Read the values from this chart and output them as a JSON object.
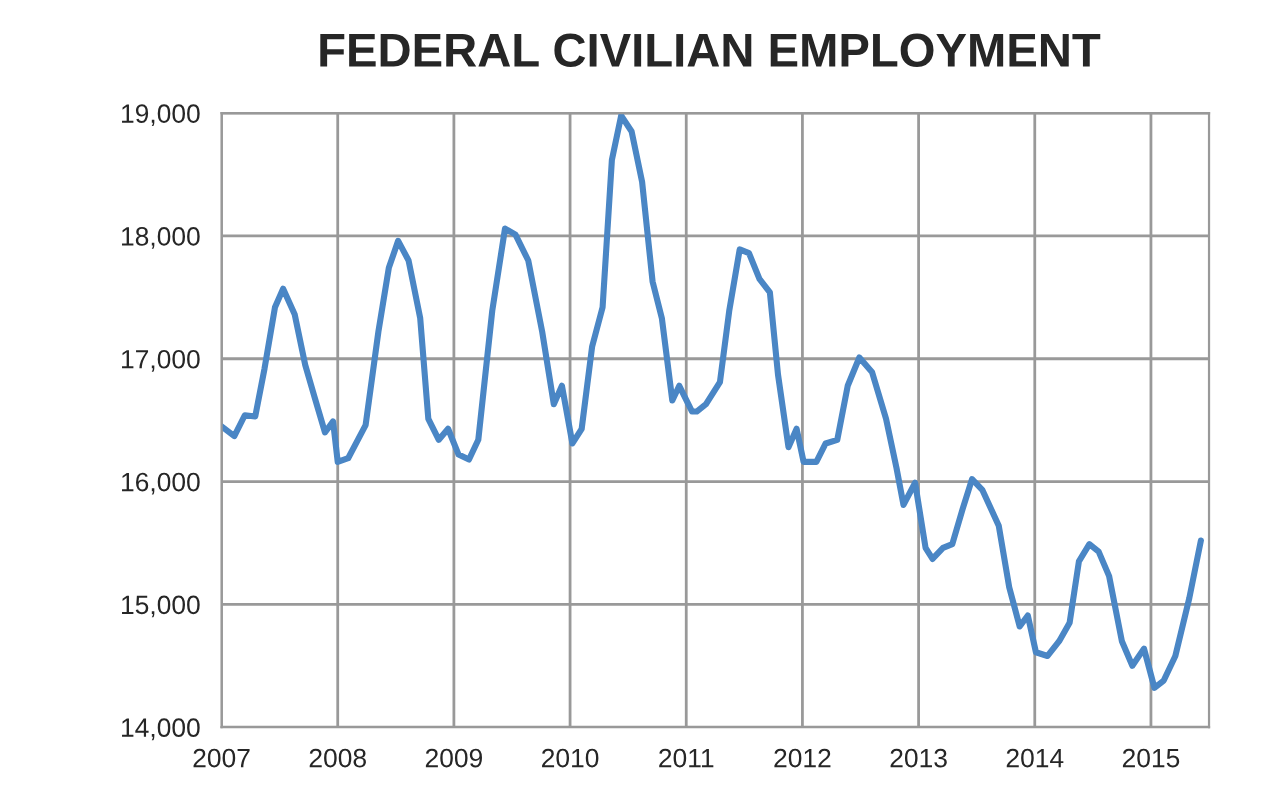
{
  "chart_data": {
    "type": "line",
    "title": "FEDERAL CIVILIAN EMPLOYMENT",
    "x": [
      2007.0,
      2007.11,
      2007.2,
      2007.29,
      2007.37,
      2007.46,
      2007.53,
      2007.63,
      2007.72,
      2007.8,
      2007.89,
      2007.96,
      2008.0,
      2008.09,
      2008.24,
      2008.35,
      2008.44,
      2008.52,
      2008.61,
      2008.71,
      2008.78,
      2008.87,
      2008.95,
      2009.04,
      2009.13,
      2009.21,
      2009.33,
      2009.44,
      2009.53,
      2009.64,
      2009.76,
      2009.86,
      2009.93,
      2010.02,
      2010.1,
      2010.19,
      2010.28,
      2010.36,
      2010.44,
      2010.53,
      2010.62,
      2010.71,
      2010.79,
      2010.88,
      2010.94,
      2011.05,
      2011.09,
      2011.17,
      2011.29,
      2011.37,
      2011.46,
      2011.54,
      2011.63,
      2011.72,
      2011.79,
      2011.88,
      2011.95,
      2012.01,
      2012.12,
      2012.2,
      2012.3,
      2012.39,
      2012.49,
      2012.6,
      2012.72,
      2012.81,
      2012.87,
      2012.97,
      2013.06,
      2013.12,
      2013.21,
      2013.29,
      2013.38,
      2013.46,
      2013.55,
      2013.69,
      2013.78,
      2013.87,
      2013.94,
      2014.01,
      2014.11,
      2014.21,
      2014.3,
      2014.38,
      2014.47,
      2014.55,
      2014.64,
      2014.75,
      2014.84,
      2014.94,
      2015.03,
      2015.11,
      2015.21,
      2015.33,
      2015.43
    ],
    "series": [
      {
        "color": "#4a86c5",
        "values": [
          16450,
          16370,
          16540,
          16530,
          16920,
          17420,
          17570,
          17360,
          16950,
          16690,
          16400,
          16490,
          16160,
          16190,
          16460,
          17220,
          17740,
          17960,
          17800,
          17330,
          16510,
          16340,
          16430,
          16220,
          16180,
          16340,
          17390,
          18060,
          18010,
          17800,
          17220,
          16630,
          16780,
          16310,
          16430,
          17100,
          17420,
          18620,
          18980,
          18850,
          18440,
          17630,
          17330,
          16660,
          16780,
          16570,
          16570,
          16630,
          16810,
          17390,
          17890,
          17860,
          17650,
          17540,
          16870,
          16280,
          16430,
          16160,
          16160,
          16310,
          16340,
          16780,
          17010,
          16890,
          16510,
          16110,
          15810,
          15990,
          15460,
          15370,
          15460,
          15490,
          15780,
          16020,
          15930,
          15640,
          15140,
          14820,
          14910,
          14610,
          14580,
          14700,
          14850,
          15350,
          15490,
          15430,
          15230,
          14700,
          14500,
          14640,
          14320,
          14380,
          14580,
          15050,
          15520
        ]
      }
    ],
    "xlim": [
      2007,
      2015.5
    ],
    "xticks": [
      2007,
      2008,
      2009,
      2010,
      2011,
      2012,
      2013,
      2014,
      2015
    ],
    "ylim": [
      14000,
      19000
    ],
    "yticks": [
      {
        "value": 14000,
        "label": "14,000"
      },
      {
        "value": 15000,
        "label": "15,000"
      },
      {
        "value": 16000,
        "label": "16,000"
      },
      {
        "value": 17000,
        "label": "17,000"
      },
      {
        "value": 18000,
        "label": "18,000"
      },
      {
        "value": 19000,
        "label": "19,000"
      }
    ],
    "grid": true,
    "legend": false,
    "marker": "none",
    "line_style": "solid"
  }
}
